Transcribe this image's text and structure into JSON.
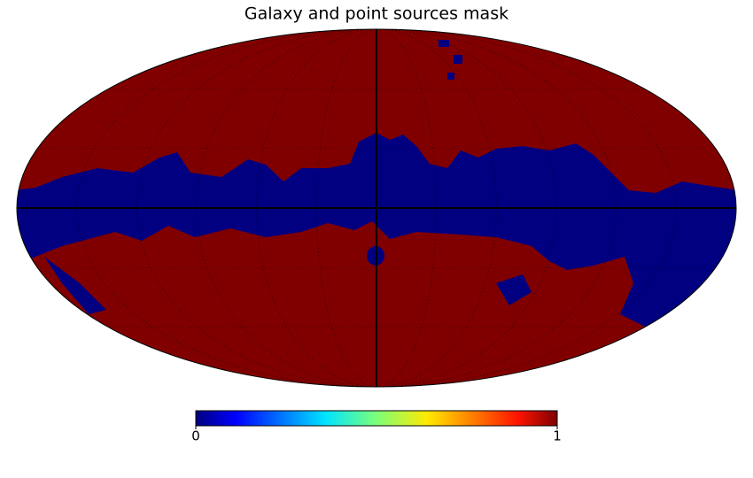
{
  "chart_data": {
    "type": "mollweide",
    "title": "Galaxy and point sources mask",
    "colorbar": {
      "lim": [
        0,
        1
      ],
      "ticks": [
        0,
        1
      ],
      "colormap": "jet"
    },
    "graticule": true
  }
}
